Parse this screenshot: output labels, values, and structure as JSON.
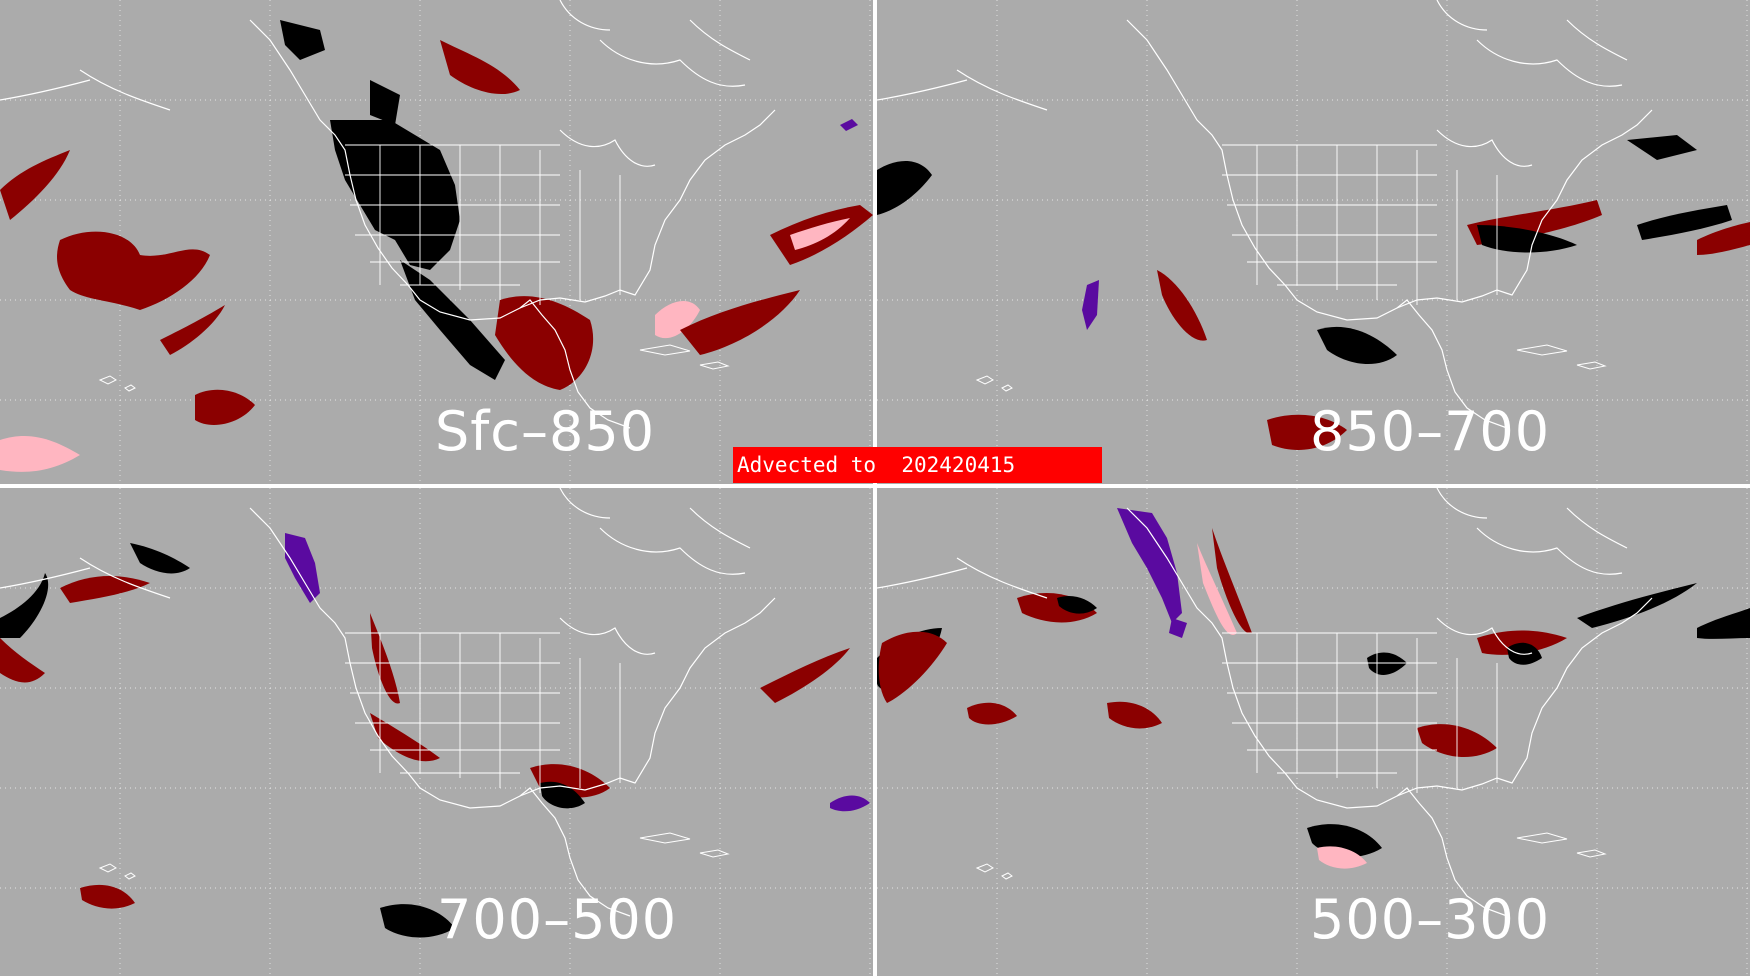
{
  "colors": {
    "background": "#ababab",
    "coastline": "#ffffff",
    "dark_red": "#8b0000",
    "pink": "#ffb6c1",
    "black": "#000000",
    "purple": "#5a0aa0",
    "banner": "#ff0000"
  },
  "panels": [
    {
      "label": "Sfc–850"
    },
    {
      "label": "850–700"
    },
    {
      "label": "700–500"
    },
    {
      "label": "500–300"
    }
  ],
  "banner": {
    "text": "Advected to  202420415"
  }
}
